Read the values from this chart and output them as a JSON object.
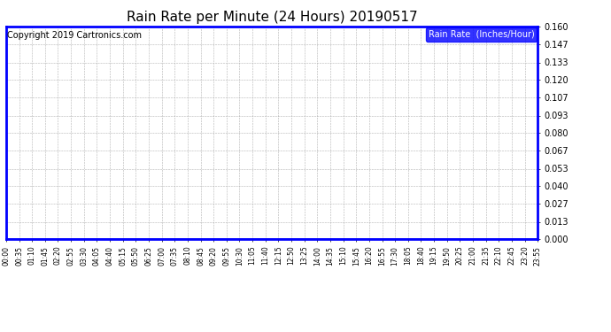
{
  "title": "Rain Rate per Minute (24 Hours) 20190517",
  "copyright_text": "Copyright 2019 Cartronics.com",
  "legend_label": "Rain Rate  (Inches/Hour)",
  "yticks": [
    0.0,
    0.013,
    0.027,
    0.04,
    0.053,
    0.067,
    0.08,
    0.093,
    0.107,
    0.12,
    0.133,
    0.147,
    0.16
  ],
  "ymin": 0.0,
  "ymax": 0.16,
  "x_labels": [
    "00:00",
    "00:35",
    "01:10",
    "01:45",
    "02:20",
    "02:55",
    "03:30",
    "04:05",
    "04:40",
    "05:15",
    "05:50",
    "06:25",
    "07:00",
    "07:35",
    "08:10",
    "08:45",
    "09:20",
    "09:55",
    "10:30",
    "11:05",
    "11:40",
    "12:15",
    "12:50",
    "13:25",
    "14:00",
    "14:35",
    "15:10",
    "15:45",
    "16:20",
    "16:55",
    "17:30",
    "18:05",
    "18:40",
    "19:15",
    "19:50",
    "20:25",
    "21:00",
    "21:35",
    "22:10",
    "22:45",
    "23:20",
    "23:55"
  ],
  "line_color": "#0000ff",
  "grid_color": "#aaaaaa",
  "background_color": "#ffffff",
  "title_fontsize": 11,
  "legend_bg_color": "#0000ff",
  "legend_text_color": "#ffffff",
  "copyright_fontsize": 7,
  "ytick_fontsize": 7,
  "xtick_fontsize": 5.5
}
